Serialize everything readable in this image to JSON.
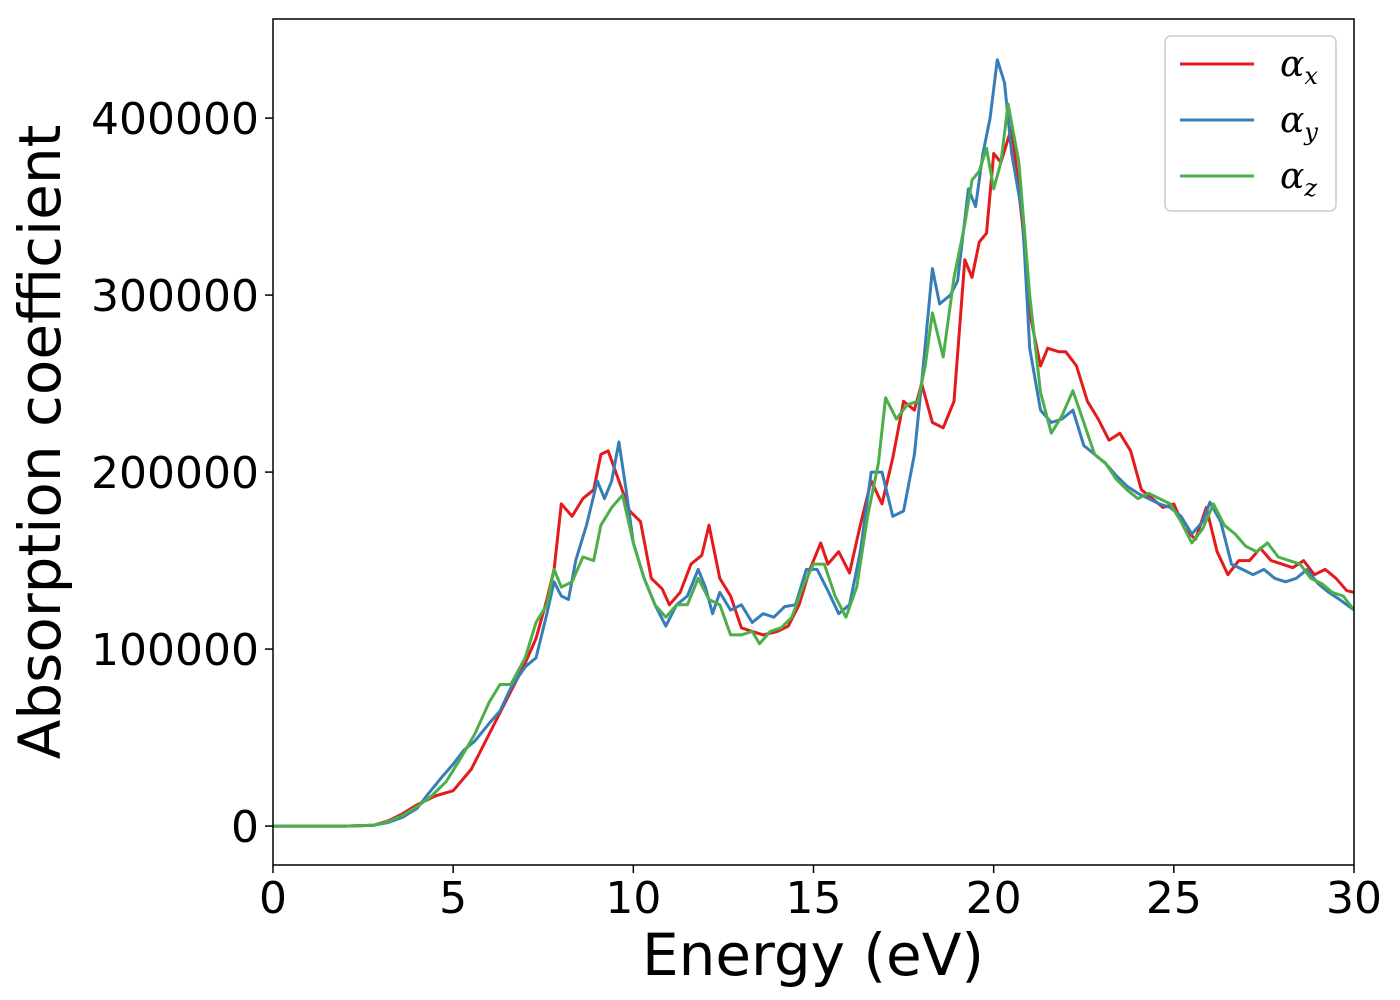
{
  "chart_data": {
    "type": "line",
    "title": "",
    "xlabel": "Energy (eV)",
    "ylabel": "Absorption coefficient",
    "xlim": [
      0,
      30
    ],
    "ylim": [
      -22000,
      456000
    ],
    "xticks": [
      0,
      5,
      10,
      15,
      20,
      25,
      30
    ],
    "yticks": [
      0,
      100000,
      200000,
      300000,
      400000
    ],
    "grid": false,
    "legend_position": "top-right",
    "series": [
      {
        "name": "α",
        "subscript": "x",
        "color": "#e41a1c",
        "points": [
          [
            0,
            0
          ],
          [
            2,
            0
          ],
          [
            2.8,
            500
          ],
          [
            3.2,
            3000
          ],
          [
            3.6,
            7000
          ],
          [
            4,
            12000
          ],
          [
            4.5,
            17000
          ],
          [
            5,
            20000
          ],
          [
            5.5,
            32000
          ],
          [
            6,
            52000
          ],
          [
            6.5,
            72000
          ],
          [
            7,
            92000
          ],
          [
            7.3,
            106000
          ],
          [
            7.6,
            128000
          ],
          [
            7.8,
            145000
          ],
          [
            8,
            182000
          ],
          [
            8.3,
            175000
          ],
          [
            8.6,
            185000
          ],
          [
            8.9,
            190000
          ],
          [
            9.1,
            210000
          ],
          [
            9.3,
            212000
          ],
          [
            9.6,
            195000
          ],
          [
            9.9,
            178000
          ],
          [
            10.2,
            172000
          ],
          [
            10.5,
            140000
          ],
          [
            10.8,
            134000
          ],
          [
            11,
            125000
          ],
          [
            11.3,
            132000
          ],
          [
            11.6,
            148000
          ],
          [
            11.9,
            153000
          ],
          [
            12.1,
            170000
          ],
          [
            12.4,
            140000
          ],
          [
            12.7,
            130000
          ],
          [
            13,
            112000
          ],
          [
            13.3,
            110000
          ],
          [
            13.6,
            108000
          ],
          [
            14,
            110000
          ],
          [
            14.3,
            113000
          ],
          [
            14.6,
            125000
          ],
          [
            14.9,
            145000
          ],
          [
            15.2,
            160000
          ],
          [
            15.4,
            148000
          ],
          [
            15.7,
            155000
          ],
          [
            16,
            143000
          ],
          [
            16.3,
            170000
          ],
          [
            16.6,
            195000
          ],
          [
            16.9,
            182000
          ],
          [
            17.2,
            208000
          ],
          [
            17.5,
            240000
          ],
          [
            17.8,
            235000
          ],
          [
            18,
            250000
          ],
          [
            18.3,
            228000
          ],
          [
            18.6,
            225000
          ],
          [
            18.9,
            240000
          ],
          [
            19.2,
            320000
          ],
          [
            19.4,
            310000
          ],
          [
            19.6,
            330000
          ],
          [
            19.8,
            335000
          ],
          [
            20,
            380000
          ],
          [
            20.2,
            375000
          ],
          [
            20.5,
            395000
          ],
          [
            20.8,
            340000
          ],
          [
            21,
            290000
          ],
          [
            21.3,
            260000
          ],
          [
            21.5,
            270000
          ],
          [
            21.8,
            268000
          ],
          [
            22,
            268000
          ],
          [
            22.3,
            260000
          ],
          [
            22.6,
            240000
          ],
          [
            22.9,
            230000
          ],
          [
            23.2,
            218000
          ],
          [
            23.5,
            222000
          ],
          [
            23.8,
            212000
          ],
          [
            24.1,
            190000
          ],
          [
            24.4,
            185000
          ],
          [
            24.7,
            180000
          ],
          [
            25,
            182000
          ],
          [
            25.3,
            168000
          ],
          [
            25.6,
            162000
          ],
          [
            25.9,
            180000
          ],
          [
            26.2,
            155000
          ],
          [
            26.5,
            142000
          ],
          [
            26.8,
            150000
          ],
          [
            27.1,
            150000
          ],
          [
            27.4,
            157000
          ],
          [
            27.7,
            150000
          ],
          [
            28,
            148000
          ],
          [
            28.3,
            146000
          ],
          [
            28.6,
            150000
          ],
          [
            28.9,
            142000
          ],
          [
            29.2,
            145000
          ],
          [
            29.5,
            140000
          ],
          [
            29.8,
            133000
          ],
          [
            30,
            132000
          ]
        ]
      },
      {
        "name": "α",
        "subscript": "y",
        "color": "#377eb8",
        "points": [
          [
            0,
            0
          ],
          [
            2,
            0
          ],
          [
            2.8,
            500
          ],
          [
            3.2,
            2000
          ],
          [
            3.6,
            5000
          ],
          [
            4,
            10000
          ],
          [
            4.3,
            18000
          ],
          [
            4.7,
            28000
          ],
          [
            5,
            35000
          ],
          [
            5.3,
            43000
          ],
          [
            5.6,
            48000
          ],
          [
            6,
            58000
          ],
          [
            6.3,
            65000
          ],
          [
            6.6,
            78000
          ],
          [
            7,
            90000
          ],
          [
            7.3,
            95000
          ],
          [
            7.6,
            120000
          ],
          [
            7.8,
            138000
          ],
          [
            8,
            130000
          ],
          [
            8.2,
            128000
          ],
          [
            8.4,
            150000
          ],
          [
            8.7,
            170000
          ],
          [
            9,
            195000
          ],
          [
            9.2,
            185000
          ],
          [
            9.4,
            195000
          ],
          [
            9.6,
            217000
          ],
          [
            9.8,
            190000
          ],
          [
            10,
            160000
          ],
          [
            10.3,
            140000
          ],
          [
            10.6,
            125000
          ],
          [
            10.9,
            113000
          ],
          [
            11.2,
            125000
          ],
          [
            11.5,
            130000
          ],
          [
            11.8,
            145000
          ],
          [
            12,
            135000
          ],
          [
            12.2,
            120000
          ],
          [
            12.4,
            132000
          ],
          [
            12.7,
            122000
          ],
          [
            13,
            125000
          ],
          [
            13.3,
            115000
          ],
          [
            13.6,
            120000
          ],
          [
            13.9,
            118000
          ],
          [
            14.2,
            124000
          ],
          [
            14.5,
            125000
          ],
          [
            14.8,
            145000
          ],
          [
            15.1,
            145000
          ],
          [
            15.4,
            133000
          ],
          [
            15.7,
            120000
          ],
          [
            16,
            125000
          ],
          [
            16.3,
            155000
          ],
          [
            16.6,
            200000
          ],
          [
            16.9,
            200000
          ],
          [
            17.2,
            175000
          ],
          [
            17.5,
            178000
          ],
          [
            17.8,
            210000
          ],
          [
            18,
            250000
          ],
          [
            18.3,
            315000
          ],
          [
            18.5,
            295000
          ],
          [
            18.8,
            300000
          ],
          [
            19,
            308000
          ],
          [
            19.3,
            360000
          ],
          [
            19.5,
            350000
          ],
          [
            19.7,
            380000
          ],
          [
            19.9,
            400000
          ],
          [
            20.1,
            433000
          ],
          [
            20.3,
            420000
          ],
          [
            20.5,
            380000
          ],
          [
            20.8,
            345000
          ],
          [
            21,
            270000
          ],
          [
            21.3,
            235000
          ],
          [
            21.6,
            228000
          ],
          [
            21.9,
            230000
          ],
          [
            22.2,
            235000
          ],
          [
            22.5,
            215000
          ],
          [
            22.8,
            210000
          ],
          [
            23.1,
            205000
          ],
          [
            23.4,
            198000
          ],
          [
            23.7,
            192000
          ],
          [
            24,
            188000
          ],
          [
            24.3,
            185000
          ],
          [
            24.6,
            182000
          ],
          [
            24.9,
            180000
          ],
          [
            25.2,
            175000
          ],
          [
            25.5,
            165000
          ],
          [
            25.8,
            172000
          ],
          [
            26,
            183000
          ],
          [
            26.3,
            172000
          ],
          [
            26.6,
            148000
          ],
          [
            26.9,
            145000
          ],
          [
            27.2,
            142000
          ],
          [
            27.5,
            145000
          ],
          [
            27.8,
            140000
          ],
          [
            28.1,
            138000
          ],
          [
            28.4,
            140000
          ],
          [
            28.7,
            145000
          ],
          [
            29,
            137000
          ],
          [
            29.3,
            132000
          ],
          [
            29.6,
            128000
          ],
          [
            30,
            122000
          ]
        ]
      },
      {
        "name": "α",
        "subscript": "z",
        "color": "#4daf4a",
        "points": [
          [
            0,
            0
          ],
          [
            2,
            0
          ],
          [
            2.8,
            500
          ],
          [
            3.2,
            2500
          ],
          [
            3.6,
            6000
          ],
          [
            4,
            11000
          ],
          [
            4.4,
            17000
          ],
          [
            4.8,
            25000
          ],
          [
            5.2,
            38000
          ],
          [
            5.6,
            52000
          ],
          [
            6,
            70000
          ],
          [
            6.3,
            80000
          ],
          [
            6.6,
            80000
          ],
          [
            7,
            95000
          ],
          [
            7.3,
            115000
          ],
          [
            7.6,
            125000
          ],
          [
            7.8,
            145000
          ],
          [
            8,
            135000
          ],
          [
            8.3,
            138000
          ],
          [
            8.6,
            152000
          ],
          [
            8.9,
            150000
          ],
          [
            9.1,
            170000
          ],
          [
            9.4,
            180000
          ],
          [
            9.7,
            187000
          ],
          [
            10,
            160000
          ],
          [
            10.3,
            140000
          ],
          [
            10.6,
            125000
          ],
          [
            10.9,
            118000
          ],
          [
            11.2,
            125000
          ],
          [
            11.5,
            125000
          ],
          [
            11.8,
            140000
          ],
          [
            12.1,
            128000
          ],
          [
            12.4,
            125000
          ],
          [
            12.7,
            108000
          ],
          [
            13,
            108000
          ],
          [
            13.3,
            110000
          ],
          [
            13.5,
            103000
          ],
          [
            13.8,
            110000
          ],
          [
            14.1,
            112000
          ],
          [
            14.4,
            118000
          ],
          [
            14.7,
            135000
          ],
          [
            15,
            148000
          ],
          [
            15.3,
            148000
          ],
          [
            15.6,
            130000
          ],
          [
            15.9,
            118000
          ],
          [
            16.2,
            135000
          ],
          [
            16.5,
            175000
          ],
          [
            16.8,
            205000
          ],
          [
            17,
            242000
          ],
          [
            17.3,
            230000
          ],
          [
            17.6,
            238000
          ],
          [
            17.9,
            240000
          ],
          [
            18.1,
            260000
          ],
          [
            18.3,
            290000
          ],
          [
            18.6,
            265000
          ],
          [
            18.9,
            310000
          ],
          [
            19.2,
            340000
          ],
          [
            19.4,
            365000
          ],
          [
            19.6,
            370000
          ],
          [
            19.8,
            383000
          ],
          [
            20,
            360000
          ],
          [
            20.2,
            375000
          ],
          [
            20.4,
            408000
          ],
          [
            20.7,
            375000
          ],
          [
            21,
            300000
          ],
          [
            21.3,
            245000
          ],
          [
            21.6,
            222000
          ],
          [
            21.9,
            232000
          ],
          [
            22.2,
            246000
          ],
          [
            22.5,
            228000
          ],
          [
            22.8,
            210000
          ],
          [
            23.1,
            205000
          ],
          [
            23.4,
            196000
          ],
          [
            23.7,
            190000
          ],
          [
            24,
            185000
          ],
          [
            24.3,
            188000
          ],
          [
            24.6,
            185000
          ],
          [
            24.9,
            182000
          ],
          [
            25.2,
            172000
          ],
          [
            25.5,
            160000
          ],
          [
            25.8,
            168000
          ],
          [
            26.1,
            182000
          ],
          [
            26.4,
            170000
          ],
          [
            26.7,
            165000
          ],
          [
            27,
            158000
          ],
          [
            27.3,
            155000
          ],
          [
            27.6,
            160000
          ],
          [
            27.9,
            152000
          ],
          [
            28.2,
            150000
          ],
          [
            28.5,
            148000
          ],
          [
            28.8,
            140000
          ],
          [
            29.1,
            137000
          ],
          [
            29.4,
            132000
          ],
          [
            29.7,
            130000
          ],
          [
            30,
            122000
          ]
        ]
      }
    ]
  }
}
